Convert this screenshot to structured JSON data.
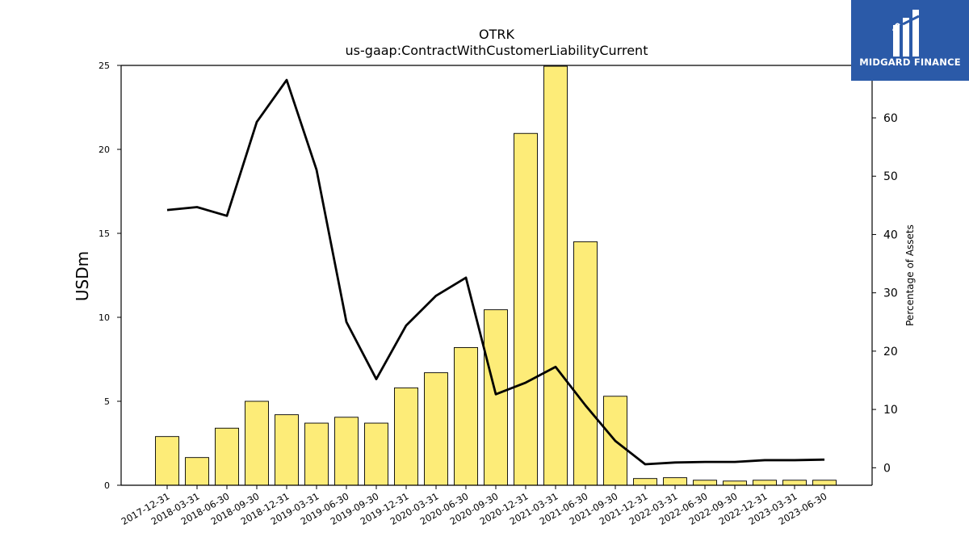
{
  "chart_data": {
    "type": "bar",
    "title": "OTRK",
    "subtitle": "us-gaap:ContractWithCustomerLiabilityCurrent",
    "ylabel": "USDm",
    "y2label": "Percentage of Assets",
    "ylim": [
      0,
      25
    ],
    "y2lim": [
      -3,
      69
    ],
    "yticks": [
      "0",
      "5",
      "10",
      "15",
      "20",
      "25"
    ],
    "y2ticks": [
      "0",
      "10",
      "20",
      "30",
      "40",
      "50",
      "60"
    ],
    "categories": [
      "2017-12-31",
      "2018-03-31",
      "2018-06-30",
      "2018-09-30",
      "2018-12-31",
      "2019-03-31",
      "2019-06-30",
      "2019-09-30",
      "2019-12-31",
      "2020-03-31",
      "2020-06-30",
      "2020-09-30",
      "2020-12-31",
      "2021-03-31",
      "2021-06-30",
      "2021-09-30",
      "2021-12-31",
      "2022-03-31",
      "2022-06-30",
      "2022-09-30",
      "2022-12-31",
      "2023-03-31",
      "2023-06-30"
    ],
    "series": [
      {
        "type": "bar",
        "axis": "left",
        "values": [
          2.9,
          1.65,
          3.4,
          5.0,
          4.2,
          3.7,
          4.05,
          3.7,
          5.8,
          6.7,
          8.2,
          10.45,
          20.95,
          24.95,
          14.5,
          5.3,
          0.4,
          0.45,
          0.3,
          0.25,
          0.3,
          0.3,
          0.3
        ],
        "color": "#fdec78"
      },
      {
        "type": "line",
        "axis": "right",
        "values": [
          44.2,
          44.7,
          43.2,
          59.3,
          66.5,
          51.1,
          25.0,
          15.2,
          24.4,
          29.5,
          32.6,
          12.6,
          14.6,
          17.3,
          10.7,
          4.6,
          0.6,
          0.9,
          1.0,
          1.0,
          1.3,
          1.3,
          1.4
        ],
        "color": "#000000"
      }
    ],
    "grid": false,
    "legend": "none"
  },
  "logo": {
    "text": "MIDGARD FINANCE",
    "color": "#2b5aa8"
  }
}
